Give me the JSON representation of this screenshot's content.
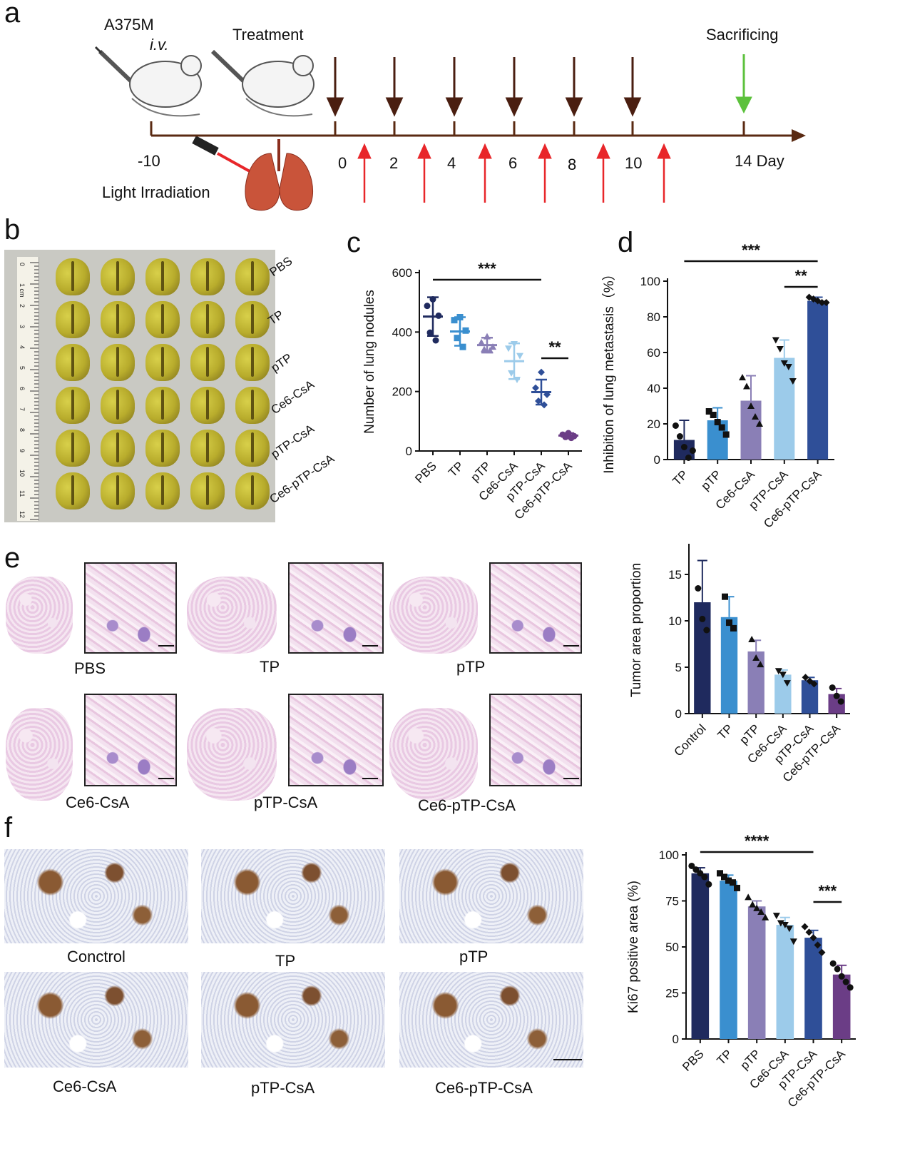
{
  "panels": {
    "a": "a",
    "b": "b",
    "c": "c",
    "d": "d",
    "e": "e",
    "f": "f"
  },
  "timeline": {
    "cell_line": "A375M",
    "route": "i.v.",
    "treatment": "Treatment",
    "sacrificing": "Sacrificing",
    "light": "Light Irradiation",
    "ticks": [
      "-10",
      "0",
      "2",
      "4",
      "6",
      "8",
      "10",
      "14 Day"
    ],
    "colors": {
      "axis": "#5a2a12",
      "treat_arrow": "#4a1e10",
      "light_arrow": "#e8262a",
      "sacrifice_arrow": "#5cc13c"
    }
  },
  "photo_b": {
    "groups": [
      "PBS",
      "TP",
      "pTP",
      "Ce6-CsA",
      "pTP-CsA",
      "Ce6-pTP-CsA"
    ],
    "ruler_numbers": [
      "0",
      "1 cm",
      "2",
      "3",
      "4",
      "5",
      "6",
      "7",
      "8",
      "9",
      "10",
      "11",
      "12"
    ]
  },
  "he_e": {
    "labels": [
      "PBS",
      "TP",
      "pTP",
      "Ce6-CsA",
      "pTP-CsA",
      "Ce6-pTP-CsA"
    ]
  },
  "ihc_f": {
    "labels": [
      "Conctrol",
      "TP",
      "pTP",
      "Ce6-CsA",
      "pTP-CsA",
      "Ce6-pTP-CsA"
    ]
  },
  "chart_data": [
    {
      "id": "c",
      "type": "scatter",
      "ylabel": "Number of lung nodules",
      "categories": [
        "PBS",
        "TP",
        "pTP",
        "Ce6-CsA",
        "pTP-CsA",
        "Ce6-pTP-CsA"
      ],
      "ylim": [
        0,
        600
      ],
      "yticks": [
        "0",
        "200",
        "400",
        "600"
      ],
      "mean": [
        452,
        402,
        356,
        302,
        198,
        52
      ],
      "sd": [
        65,
        48,
        25,
        60,
        42,
        8
      ],
      "points": [
        [
          510,
          488,
          455,
          398,
          372
        ],
        [
          450,
          440,
          405,
          380,
          350
        ],
        [
          385,
          365,
          350,
          342,
          338
        ],
        [
          360,
          345,
          320,
          262,
          240
        ],
        [
          265,
          212,
          190,
          168,
          155
        ],
        [
          60,
          55,
          50,
          47,
          44
        ]
      ],
      "colors": [
        "#1f2a5e",
        "#3a8fcf",
        "#8a7fb6",
        "#9ccbea",
        "#2f4f98",
        "#6b3d86"
      ],
      "significance": [
        {
          "label": "***"
        },
        {
          "label": "**"
        }
      ]
    },
    {
      "id": "d",
      "type": "bar",
      "ylabel": "Inhibition of lung metastasis（%）",
      "categories": [
        "TP",
        "pTP",
        "Ce6-CsA",
        "pTP-CsA",
        "Ce6-pTP-CsA"
      ],
      "ylim": [
        0,
        100
      ],
      "yticks": [
        "0",
        "20",
        "40",
        "60",
        "80",
        "100"
      ],
      "values": [
        11,
        22,
        33,
        57,
        89
      ],
      "sd": [
        11,
        7,
        14,
        10,
        2
      ],
      "points": [
        [
          19,
          13,
          7,
          1,
          5
        ],
        [
          27,
          25,
          21,
          18,
          14
        ],
        [
          46,
          41,
          30,
          24,
          20
        ],
        [
          67,
          62,
          54,
          52,
          44
        ],
        [
          91,
          90,
          89,
          88,
          88
        ]
      ],
      "colors": [
        "#1f2a5e",
        "#3a8fcf",
        "#8a7fb6",
        "#9ccbea",
        "#2f4f98"
      ],
      "significance": [
        {
          "label": "***"
        },
        {
          "label": "**"
        }
      ]
    },
    {
      "id": "e",
      "type": "bar",
      "ylabel": "Tumor area proportion",
      "categories": [
        "Control",
        "TP",
        "pTP",
        "Ce6-CsA",
        "pTP-CsA",
        "Ce6-pTP-CsA"
      ],
      "ylim": [
        0,
        18
      ],
      "yticks": [
        "0",
        "5",
        "10",
        "15"
      ],
      "values": [
        12,
        10.4,
        6.7,
        4.2,
        3.6,
        2.1
      ],
      "sd": [
        4.5,
        2.2,
        1.2,
        0.5,
        0.3,
        0.6
      ],
      "points": [
        [
          13.5,
          10.2,
          9.0
        ],
        [
          12.6,
          9.8,
          9.2
        ],
        [
          8.0,
          6.0,
          5.3
        ],
        [
          4.6,
          4.2,
          3.3
        ],
        [
          3.9,
          3.5,
          3.2
        ],
        [
          2.8,
          1.9,
          1.3
        ]
      ],
      "colors": [
        "#1f2a5e",
        "#3a8fcf",
        "#8a7fb6",
        "#9ccbea",
        "#2f4f98",
        "#6b3d86"
      ]
    },
    {
      "id": "f",
      "type": "bar",
      "ylabel": "Ki67 positive area (%)",
      "categories": [
        "PBS",
        "TP",
        "pTP",
        "Ce6-CsA",
        "pTP-CsA",
        "Ce6-pTP-CsA"
      ],
      "ylim": [
        0,
        100
      ],
      "yticks": [
        "0",
        "25",
        "50",
        "75",
        "100"
      ],
      "values": [
        90,
        86,
        72,
        62,
        55,
        35
      ],
      "sd": [
        3,
        3,
        3,
        4,
        4,
        5
      ],
      "points": [
        [
          94,
          92,
          90,
          88,
          84
        ],
        [
          90,
          88,
          86,
          85,
          82
        ],
        [
          77,
          73,
          71,
          69,
          66
        ],
        [
          67,
          63,
          62,
          60,
          53
        ],
        [
          61,
          58,
          55,
          51,
          47
        ],
        [
          41,
          38,
          34,
          31,
          28
        ]
      ],
      "colors": [
        "#1f2a5e",
        "#3a8fcf",
        "#8a7fb6",
        "#9ccbea",
        "#2f4f98",
        "#6b3d86"
      ],
      "significance": [
        {
          "label": "****"
        },
        {
          "label": "***"
        }
      ]
    }
  ]
}
